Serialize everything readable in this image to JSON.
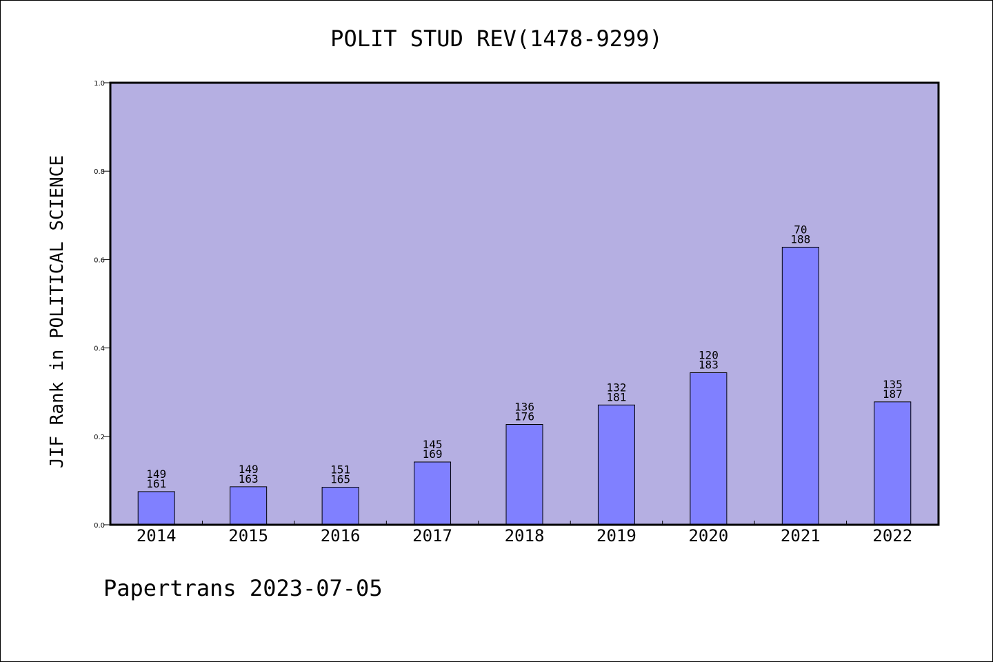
{
  "chart_data": {
    "type": "bar",
    "title": "POLIT STUD REV(1478-9299)",
    "ylabel": "JIF Rank in POLITICAL SCIENCE",
    "xlabel": "",
    "ylim": [
      0,
      1.0
    ],
    "yticks": [
      "0.0",
      "0.2",
      "0.4",
      "0.6",
      "0.8",
      "1.0"
    ],
    "categories": [
      "2014",
      "2015",
      "2016",
      "2017",
      "2018",
      "2019",
      "2020",
      "2021",
      "2022"
    ],
    "values": [
      0.075,
      0.086,
      0.085,
      0.142,
      0.227,
      0.271,
      0.344,
      0.628,
      0.278
    ],
    "rank": [
      "149",
      "149",
      "151",
      "145",
      "136",
      "132",
      "120",
      "70",
      "135"
    ],
    "total": [
      "161",
      "163",
      "165",
      "169",
      "176",
      "181",
      "183",
      "188",
      "187"
    ],
    "grid": false,
    "legend": "none",
    "colors": {
      "plot_bg": "#b5afe2",
      "bar": "#8080ff",
      "axis": "#000000"
    }
  },
  "footer": {
    "text": "Papertrans 2023-07-05"
  }
}
